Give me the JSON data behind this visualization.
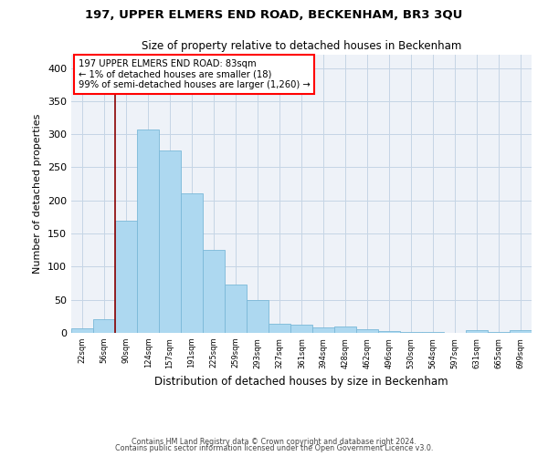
{
  "title": "197, UPPER ELMERS END ROAD, BECKENHAM, BR3 3QU",
  "subtitle": "Size of property relative to detached houses in Beckenham",
  "xlabel": "Distribution of detached houses by size in Beckenham",
  "ylabel": "Number of detached properties",
  "bar_color": "#add8f0",
  "bar_edge_color": "#7ab8d8",
  "bg_color": "#eef2f8",
  "grid_color": "#c5d5e5",
  "annotation_text": "197 UPPER ELMERS END ROAD: 83sqm\n← 1% of detached houses are smaller (18)\n99% of semi-detached houses are larger (1,260) →",
  "vline_x": 90,
  "categories": [
    "22sqm",
    "56sqm",
    "90sqm",
    "124sqm",
    "157sqm",
    "191sqm",
    "225sqm",
    "259sqm",
    "293sqm",
    "327sqm",
    "361sqm",
    "394sqm",
    "428sqm",
    "462sqm",
    "496sqm",
    "530sqm",
    "564sqm",
    "597sqm",
    "631sqm",
    "665sqm",
    "699sqm"
  ],
  "bin_left": [
    22,
    56,
    90,
    124,
    157,
    191,
    225,
    259,
    293,
    327,
    361,
    394,
    428,
    462,
    496,
    530,
    564,
    597,
    631,
    665,
    699
  ],
  "bin_width": 34,
  "values": [
    7,
    20,
    170,
    307,
    275,
    211,
    125,
    73,
    49,
    14,
    13,
    8,
    9,
    5,
    3,
    2,
    1,
    0,
    4,
    1,
    4
  ],
  "xlim": [
    22,
    733
  ],
  "ylim": [
    0,
    420
  ],
  "yticks": [
    0,
    50,
    100,
    150,
    200,
    250,
    300,
    350,
    400
  ],
  "footnote1": "Contains HM Land Registry data © Crown copyright and database right 2024.",
  "footnote2": "Contains public sector information licensed under the Open Government Licence v3.0."
}
